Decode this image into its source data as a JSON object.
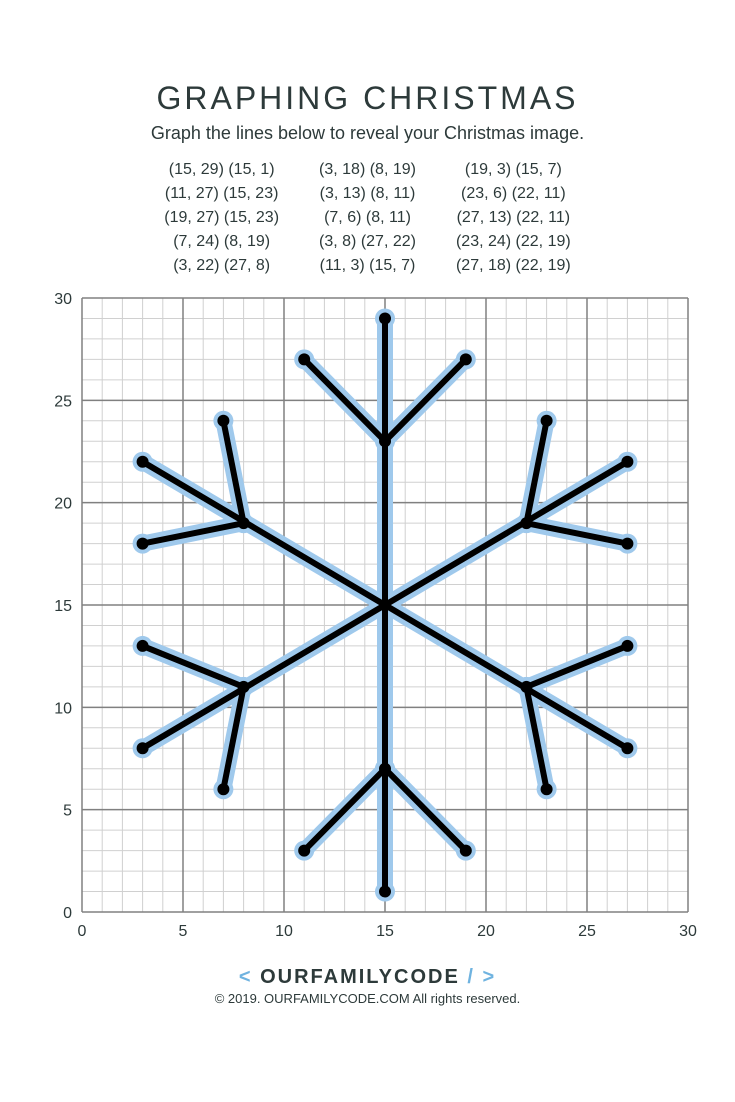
{
  "title": "GRAPHING  CHRISTMAS",
  "subtitle": "Graph the lines below to reveal your Christmas image.",
  "coord_columns": [
    [
      "(15, 29) (15, 1)",
      "(11, 27) (15, 23)",
      "(19, 27) (15, 23)",
      "(7, 24) (8, 19)",
      "(3, 22) (27, 8)"
    ],
    [
      "(3, 18) (8, 19)",
      "(3, 13) (8, 11)",
      "(7, 6) (8, 11)",
      "(3, 8) (27, 22)",
      "(11, 3) (15, 7)"
    ],
    [
      "(19, 3) (15, 7)",
      "(23, 6) (22, 11)",
      "(27, 13) (22, 11)",
      "(23, 24) (22, 19)",
      "(27, 18) (22, 19)"
    ]
  ],
  "chart": {
    "type": "line-plot",
    "xlim": [
      0,
      30
    ],
    "ylim": [
      0,
      30
    ],
    "major_tick_step": 5,
    "minor_tick_step": 1,
    "x_ticks": [
      0,
      5,
      10,
      15,
      20,
      25,
      30
    ],
    "y_ticks": [
      0,
      5,
      10,
      15,
      20,
      25,
      30
    ],
    "tick_fontsize": 16,
    "minor_grid_color": "#d0d0d0",
    "major_grid_color": "#808080",
    "background_color": "#ffffff",
    "halo_color": "#9fc9ec",
    "halo_width": 16,
    "line_color": "#000000",
    "line_width": 6,
    "endpoint_radius": 6,
    "segments": [
      [
        [
          15,
          29
        ],
        [
          15,
          1
        ]
      ],
      [
        [
          11,
          27
        ],
        [
          15,
          23
        ]
      ],
      [
        [
          19,
          27
        ],
        [
          15,
          23
        ]
      ],
      [
        [
          7,
          24
        ],
        [
          8,
          19
        ]
      ],
      [
        [
          3,
          22
        ],
        [
          27,
          8
        ]
      ],
      [
        [
          3,
          18
        ],
        [
          8,
          19
        ]
      ],
      [
        [
          3,
          13
        ],
        [
          8,
          11
        ]
      ],
      [
        [
          7,
          6
        ],
        [
          8,
          11
        ]
      ],
      [
        [
          3,
          8
        ],
        [
          27,
          22
        ]
      ],
      [
        [
          11,
          3
        ],
        [
          15,
          7
        ]
      ],
      [
        [
          19,
          3
        ],
        [
          15,
          7
        ]
      ],
      [
        [
          23,
          6
        ],
        [
          22,
          11
        ]
      ],
      [
        [
          27,
          13
        ],
        [
          22,
          11
        ]
      ],
      [
        [
          23,
          24
        ],
        [
          22,
          19
        ]
      ],
      [
        [
          27,
          18
        ],
        [
          22,
          19
        ]
      ]
    ]
  },
  "footer": {
    "logo_left": "< ",
    "logo_mid": "OURFAMILYCODE",
    "logo_right": " / >",
    "copyright": "© 2019. OURFAMILYCODE.COM All rights reserved."
  }
}
